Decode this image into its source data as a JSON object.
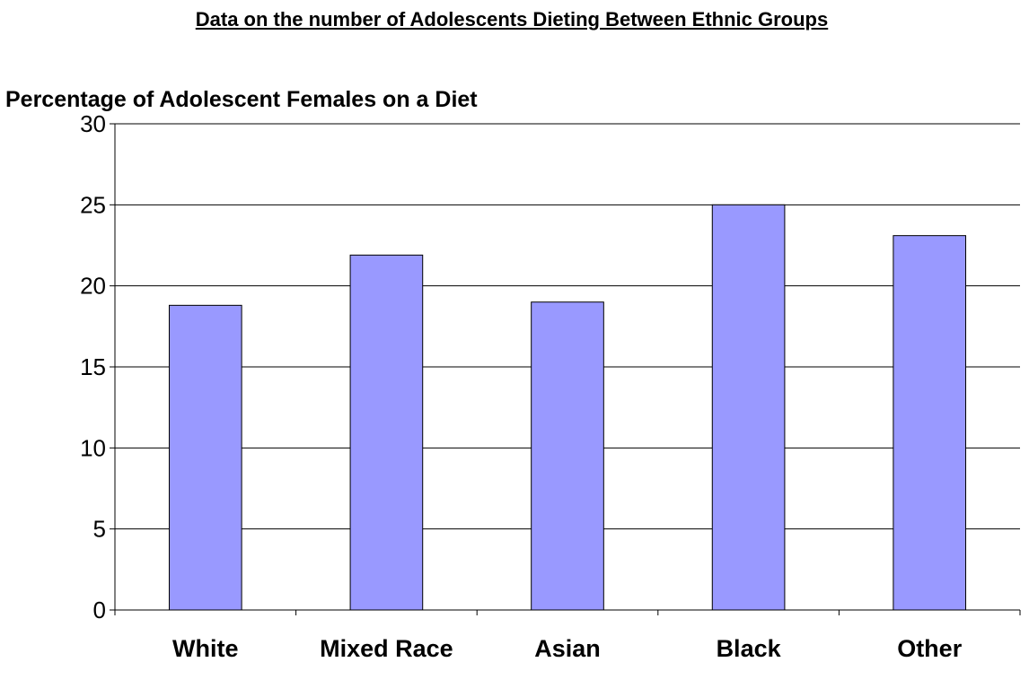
{
  "page": {
    "heading": "Data on the number of Adolescents Dieting Between Ethnic Groups"
  },
  "chart_data": {
    "type": "bar",
    "title": "Percentage of Adolescent Females on a Diet",
    "xlabel": "",
    "ylabel": "",
    "categories": [
      "White",
      "Mixed Race",
      "Asian",
      "Black",
      "Other"
    ],
    "series": [
      {
        "values": [
          18.8,
          21.9,
          19.0,
          25.0,
          23.1
        ]
      }
    ],
    "ylim": [
      0,
      30
    ],
    "yticks": [
      0,
      5,
      10,
      15,
      20,
      25,
      30
    ],
    "grid": true,
    "legend": "none",
    "bar_color": "#9999ff",
    "bar_edge_color": "#000000"
  }
}
